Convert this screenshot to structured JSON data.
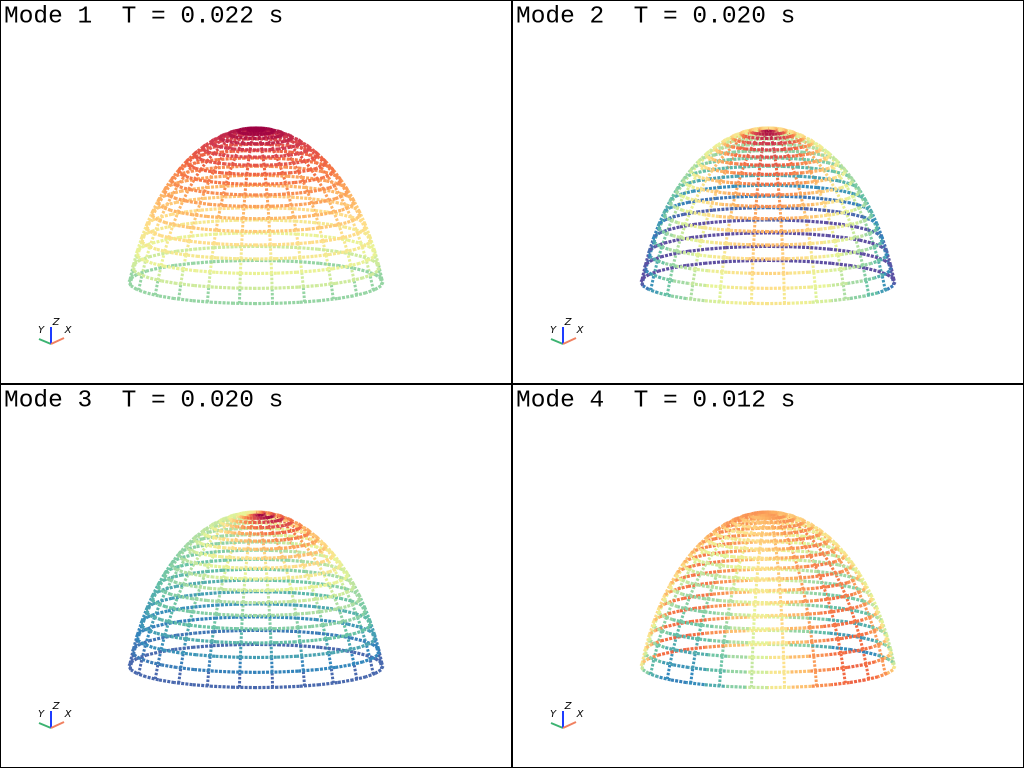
{
  "panels": [
    {
      "title": "Mode 1  T = 0.022 s"
    },
    {
      "title": "Mode 2  T = 0.020 s"
    },
    {
      "title": "Mode 3  T = 0.020 s"
    },
    {
      "title": "Mode 4  T = 0.012 s"
    }
  ],
  "triad_labels": [
    "Y",
    "Z",
    "X"
  ]
}
